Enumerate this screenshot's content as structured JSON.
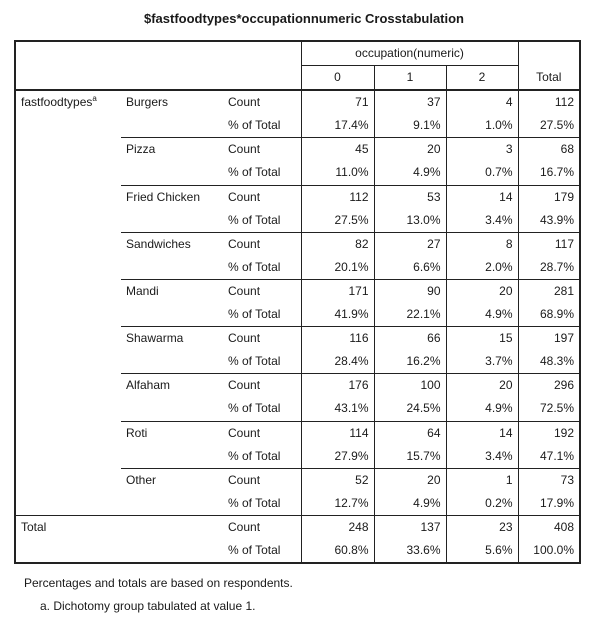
{
  "title": "$fastfoodtypes*occupationnumeric Crosstabulation",
  "header": {
    "group_label": "occupation(numeric)",
    "columns": [
      "0",
      "1",
      "2"
    ],
    "total_label": "Total"
  },
  "row_variable": {
    "name": "fastfoodtypes",
    "footnote_mark": "a"
  },
  "stat_labels": {
    "count": "Count",
    "pct": "% of Total"
  },
  "rows": [
    {
      "label": "Burgers",
      "count": [
        "71",
        "37",
        "4",
        "112"
      ],
      "pct": [
        "17.4%",
        "9.1%",
        "1.0%",
        "27.5%"
      ]
    },
    {
      "label": "Pizza",
      "count": [
        "45",
        "20",
        "3",
        "68"
      ],
      "pct": [
        "11.0%",
        "4.9%",
        "0.7%",
        "16.7%"
      ]
    },
    {
      "label": "Fried Chicken",
      "count": [
        "112",
        "53",
        "14",
        "179"
      ],
      "pct": [
        "27.5%",
        "13.0%",
        "3.4%",
        "43.9%"
      ]
    },
    {
      "label": "Sandwiches",
      "count": [
        "82",
        "27",
        "8",
        "117"
      ],
      "pct": [
        "20.1%",
        "6.6%",
        "2.0%",
        "28.7%"
      ]
    },
    {
      "label": "Mandi",
      "count": [
        "171",
        "90",
        "20",
        "281"
      ],
      "pct": [
        "41.9%",
        "22.1%",
        "4.9%",
        "68.9%"
      ]
    },
    {
      "label": "Shawarma",
      "count": [
        "116",
        "66",
        "15",
        "197"
      ],
      "pct": [
        "28.4%",
        "16.2%",
        "3.7%",
        "48.3%"
      ]
    },
    {
      "label": "Alfaham",
      "count": [
        "176",
        "100",
        "20",
        "296"
      ],
      "pct": [
        "43.1%",
        "24.5%",
        "4.9%",
        "72.5%"
      ]
    },
    {
      "label": "Roti",
      "count": [
        "114",
        "64",
        "14",
        "192"
      ],
      "pct": [
        "27.9%",
        "15.7%",
        "3.4%",
        "47.1%"
      ]
    },
    {
      "label": "Other",
      "count": [
        "52",
        "20",
        "1",
        "73"
      ],
      "pct": [
        "12.7%",
        "4.9%",
        "0.2%",
        "17.9%"
      ]
    }
  ],
  "total_row": {
    "label": "Total",
    "count": [
      "248",
      "137",
      "23",
      "408"
    ],
    "pct": [
      "60.8%",
      "33.6%",
      "5.6%",
      "100.0%"
    ]
  },
  "footnotes": {
    "note": "Percentages and totals are based on respondents.",
    "a": "a. Dichotomy group tabulated at value 1."
  }
}
